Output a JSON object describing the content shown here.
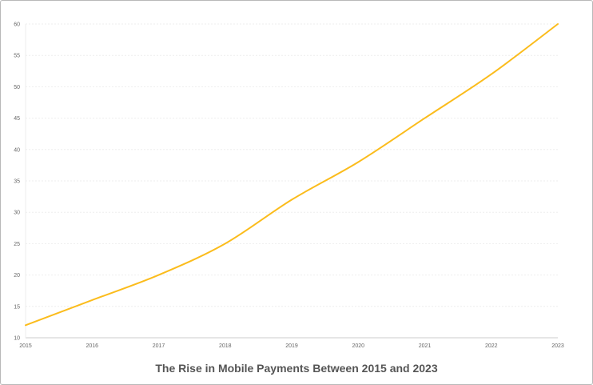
{
  "chart_data": {
    "type": "line",
    "title": "The Rise in Mobile Payments Between 2015 and 2023",
    "xlabel": "",
    "ylabel": "",
    "x": [
      "2015",
      "2016",
      "2017",
      "2018",
      "2019",
      "2020",
      "2021",
      "2022",
      "2023"
    ],
    "series": [
      {
        "values": [
          12,
          16,
          20,
          25,
          32,
          38,
          45,
          52,
          60
        ],
        "color": "#fbbc1c"
      }
    ],
    "ylim": [
      10,
      60
    ],
    "yticks": [
      10,
      15,
      20,
      25,
      30,
      35,
      40,
      45,
      50,
      55,
      60
    ],
    "grid": true,
    "legend": "none"
  }
}
